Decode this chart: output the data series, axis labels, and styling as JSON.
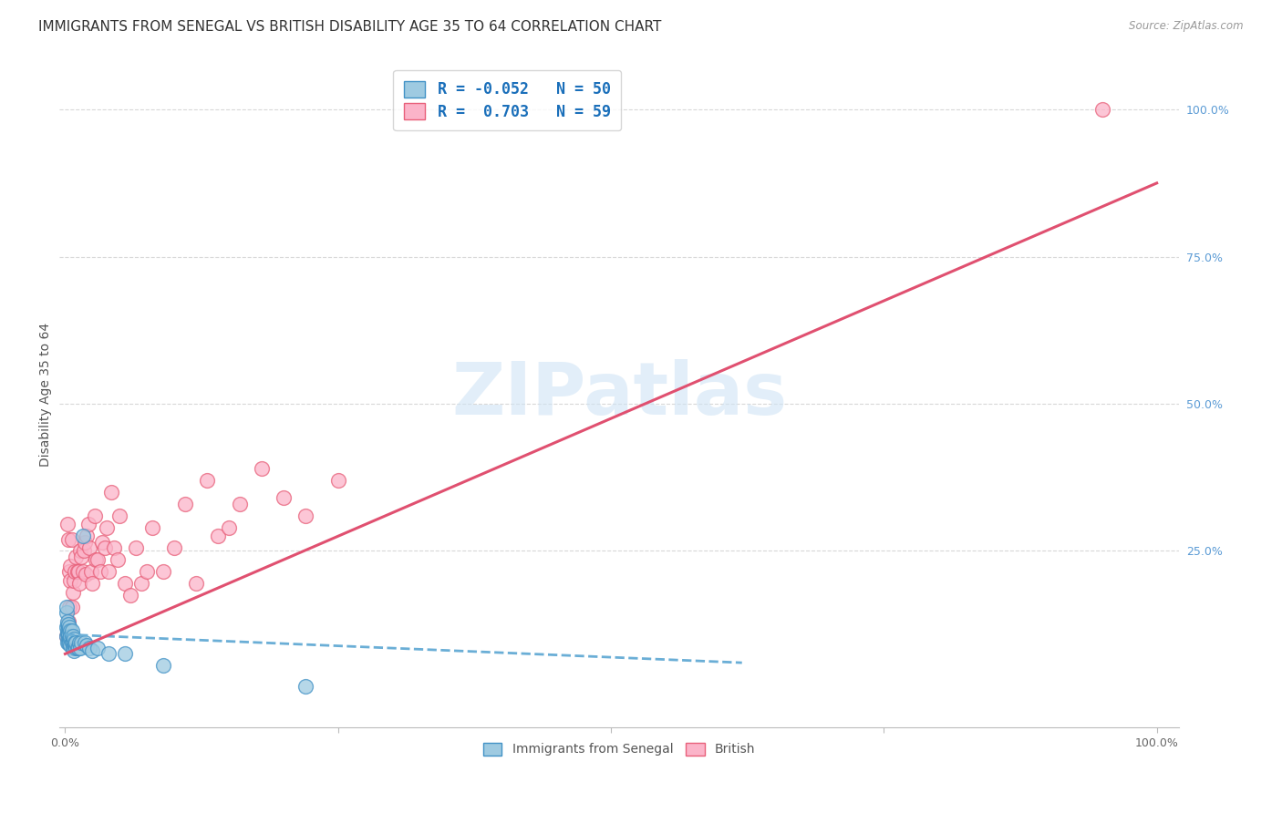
{
  "title": "IMMIGRANTS FROM SENEGAL VS BRITISH DISABILITY AGE 35 TO 64 CORRELATION CHART",
  "source": "Source: ZipAtlas.com",
  "ylabel": "Disability Age 35 to 64",
  "xlim": [
    -0.005,
    1.02
  ],
  "ylim": [
    -0.05,
    1.08
  ],
  "xtick_vals": [
    0.0,
    0.25,
    0.5,
    0.75,
    1.0
  ],
  "xtick_labels": [
    "0.0%",
    "",
    "",
    "",
    "100.0%"
  ],
  "yticks_right": [
    0.0,
    0.25,
    0.5,
    0.75,
    1.0
  ],
  "ytick_labels_right": [
    "",
    "25.0%",
    "50.0%",
    "75.0%",
    "100.0%"
  ],
  "legend_label1": "Immigrants from Senegal",
  "legend_label2": "British",
  "r1": -0.052,
  "n1": 50,
  "r2": 0.703,
  "n2": 59,
  "color_blue": "#9ecae1",
  "color_blue_edge": "#4292c6",
  "color_pink": "#fbb4c9",
  "color_pink_edge": "#e8607a",
  "color_blue_line": "#6aaed6",
  "color_pink_line": "#e05070",
  "watermark_color": "#d0e4f5",
  "title_color": "#333333",
  "source_color": "#999999",
  "tick_color_right": "#5b9bd5",
  "tick_color_bottom": "#666666",
  "grid_color": "#d8d8d8",
  "spine_color": "#bbbbbb",
  "ylabel_color": "#555555",
  "title_fontsize": 11,
  "axis_label_fontsize": 10,
  "tick_fontsize": 9,
  "watermark": "ZIPatlas",
  "blue_scatter_x": [
    0.001,
    0.001,
    0.001,
    0.001,
    0.002,
    0.002,
    0.002,
    0.002,
    0.002,
    0.003,
    0.003,
    0.003,
    0.003,
    0.003,
    0.004,
    0.004,
    0.004,
    0.004,
    0.005,
    0.005,
    0.005,
    0.005,
    0.006,
    0.006,
    0.006,
    0.007,
    0.007,
    0.007,
    0.008,
    0.008,
    0.008,
    0.009,
    0.009,
    0.01,
    0.01,
    0.011,
    0.012,
    0.013,
    0.014,
    0.015,
    0.016,
    0.018,
    0.02,
    0.022,
    0.025,
    0.03,
    0.04,
    0.055,
    0.09,
    0.22
  ],
  "blue_scatter_y": [
    0.145,
    0.155,
    0.12,
    0.105,
    0.11,
    0.125,
    0.115,
    0.095,
    0.13,
    0.105,
    0.115,
    0.125,
    0.11,
    0.095,
    0.1,
    0.115,
    0.12,
    0.095,
    0.1,
    0.115,
    0.105,
    0.09,
    0.095,
    0.105,
    0.115,
    0.095,
    0.105,
    0.085,
    0.09,
    0.1,
    0.08,
    0.09,
    0.095,
    0.085,
    0.095,
    0.085,
    0.085,
    0.095,
    0.085,
    0.095,
    0.275,
    0.095,
    0.09,
    0.085,
    0.08,
    0.085,
    0.075,
    0.075,
    0.055,
    0.02
  ],
  "pink_scatter_x": [
    0.001,
    0.002,
    0.003,
    0.003,
    0.004,
    0.004,
    0.005,
    0.005,
    0.006,
    0.006,
    0.007,
    0.008,
    0.009,
    0.01,
    0.011,
    0.012,
    0.013,
    0.014,
    0.015,
    0.016,
    0.017,
    0.018,
    0.019,
    0.02,
    0.021,
    0.022,
    0.024,
    0.025,
    0.027,
    0.028,
    0.03,
    0.032,
    0.034,
    0.036,
    0.038,
    0.04,
    0.042,
    0.045,
    0.048,
    0.05,
    0.055,
    0.06,
    0.065,
    0.07,
    0.075,
    0.08,
    0.09,
    0.1,
    0.11,
    0.12,
    0.13,
    0.14,
    0.15,
    0.16,
    0.18,
    0.2,
    0.22,
    0.25,
    0.95
  ],
  "pink_scatter_y": [
    0.105,
    0.295,
    0.13,
    0.27,
    0.155,
    0.215,
    0.2,
    0.225,
    0.27,
    0.155,
    0.18,
    0.2,
    0.215,
    0.24,
    0.215,
    0.215,
    0.195,
    0.25,
    0.24,
    0.215,
    0.25,
    0.265,
    0.21,
    0.275,
    0.295,
    0.255,
    0.215,
    0.195,
    0.31,
    0.235,
    0.235,
    0.215,
    0.265,
    0.255,
    0.29,
    0.215,
    0.35,
    0.255,
    0.235,
    0.31,
    0.195,
    0.175,
    0.255,
    0.195,
    0.215,
    0.29,
    0.215,
    0.255,
    0.33,
    0.195,
    0.37,
    0.275,
    0.29,
    0.33,
    0.39,
    0.34,
    0.31,
    0.37,
    1.0
  ],
  "blue_trend_x": [
    0.0,
    0.62
  ],
  "blue_trend_y": [
    0.108,
    0.06
  ],
  "pink_trend_x": [
    0.0,
    1.0
  ],
  "pink_trend_y": [
    0.075,
    0.875
  ]
}
